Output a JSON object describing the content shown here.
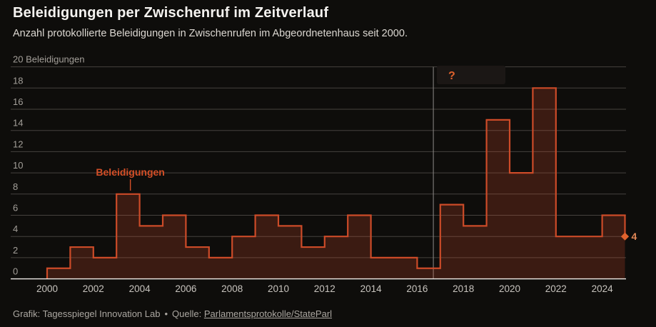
{
  "header": {
    "title": "Beleidigungen per Zwischenruf im Zeitverlauf",
    "subtitle": "Anzahl protokollierte Beleidigungen in Zwischenrufen im Abgeordnetenhaus seit 2000."
  },
  "chart_data": {
    "type": "area",
    "step": true,
    "title": "Beleidigungen per Zwischenruf im Zeitverlauf",
    "x": [
      2000,
      2001,
      2002,
      2003,
      2004,
      2005,
      2006,
      2007,
      2008,
      2009,
      2010,
      2011,
      2012,
      2013,
      2014,
      2015,
      2016,
      2017,
      2018,
      2019,
      2020,
      2021,
      2022,
      2023,
      2024
    ],
    "series": [
      {
        "name": "Beleidigungen",
        "values": [
          1,
          3,
          2,
          8,
          5,
          6,
          3,
          2,
          4,
          6,
          5,
          3,
          4,
          6,
          2,
          2,
          1,
          7,
          5,
          15,
          10,
          18,
          4,
          4,
          6
        ]
      }
    ],
    "end_point": {
      "year": 2025,
      "value": 4,
      "label": "4"
    },
    "y_axis": {
      "min": 0,
      "max": 20,
      "tick_step": 2,
      "top_label": "20 Beleidigungen"
    },
    "x_ticks": [
      2000,
      2002,
      2004,
      2006,
      2008,
      2010,
      2012,
      2014,
      2016,
      2018,
      2020,
      2022,
      2024
    ],
    "grid": true,
    "legend_position": "inline-label",
    "annotations": {
      "series_label": "Beleidigungen",
      "series_label_year": 2003.6,
      "question_mark": "?",
      "vline_year": 2016.7
    },
    "colors": {
      "background": "#0e0d0b",
      "line": "#cc4b28",
      "fill": "#cc4b28",
      "fill_opacity": 0.24,
      "grid": "#45423e",
      "axis_line": "#efece7",
      "y_label": "#a39f99",
      "x_label": "#c7c3bd",
      "series_label": "#d44f27",
      "vline": "#8f8d89",
      "question_mark": "#e0622d",
      "question_box": "#1b1715",
      "end_marker": "#e0622d",
      "end_label": "#e08756"
    }
  },
  "footer": {
    "credit": "Grafik: Tagesspiegel Innovation Lab",
    "separator": "•",
    "source_prefix": "Quelle:",
    "source_link": "Parlamentsprotokolle/StateParl"
  }
}
